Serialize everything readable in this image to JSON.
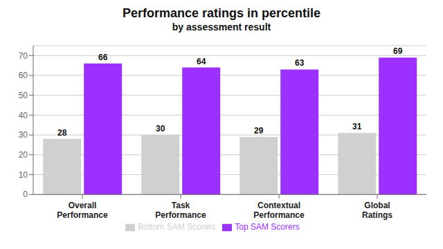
{
  "chart_data": {
    "type": "bar",
    "title": "Performance ratings in percentile",
    "subtitle": "by assessment result",
    "categories": [
      "Overall\nPerformance",
      "Task\nPerformance",
      "Contextual\nPerformance",
      "Global\nRatings"
    ],
    "series": [
      {
        "name": "Bottom SAM Scorers",
        "color": "#d0d0d0",
        "values": [
          28,
          30,
          29,
          31
        ]
      },
      {
        "name": "Top SAM Scorers",
        "color": "#9b30ff",
        "values": [
          66,
          64,
          63,
          69
        ]
      }
    ],
    "ylim": [
      0,
      75
    ],
    "yticks": [
      0,
      10,
      20,
      30,
      40,
      50,
      60,
      70
    ],
    "grid": true,
    "data_labels": true,
    "legend": "bottom"
  }
}
